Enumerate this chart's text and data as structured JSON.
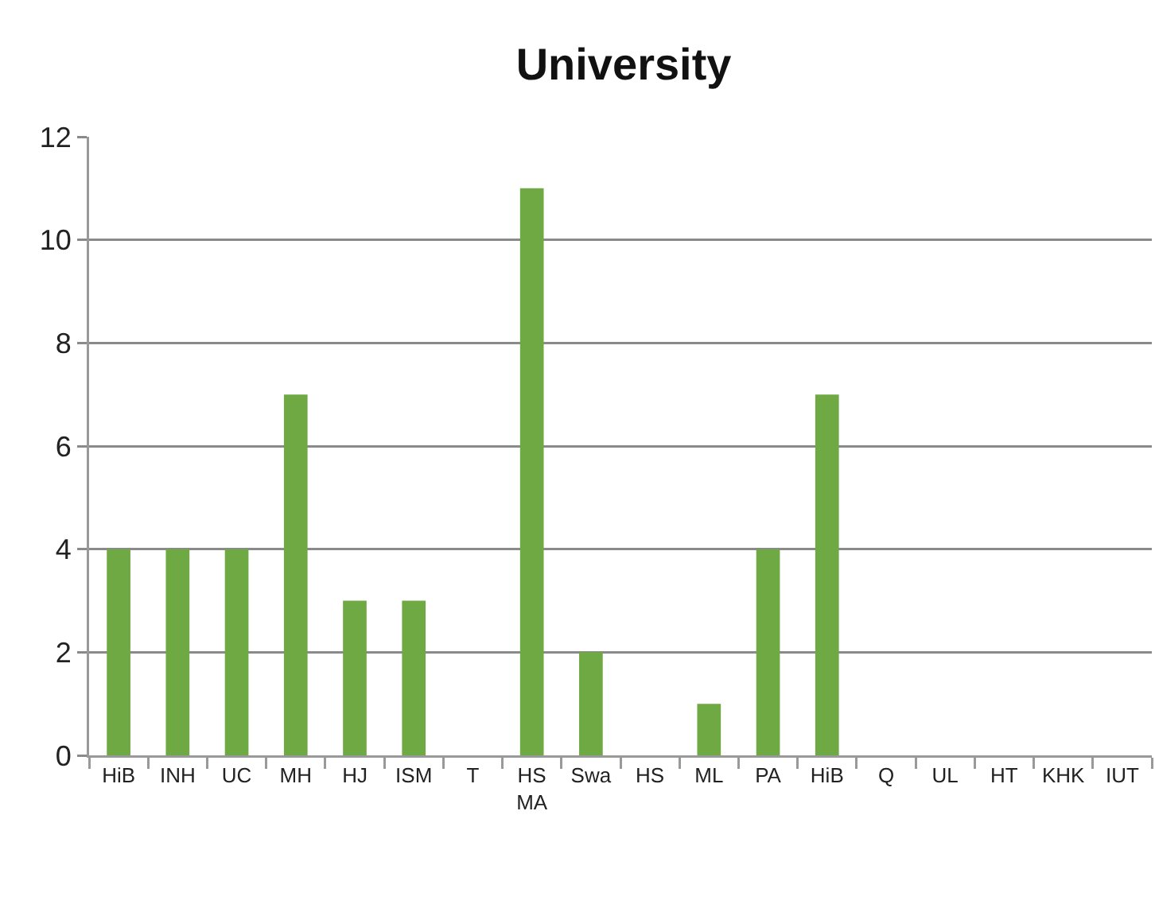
{
  "chart_data": {
    "type": "bar",
    "title": "University",
    "categories": [
      "HiB",
      "INH",
      "UC",
      "MH",
      "HJ",
      "ISM",
      "T",
      "HS MA",
      "Swa",
      "HS",
      "ML",
      "PA",
      "HiB",
      "Q",
      "UL",
      "HT",
      "KHK",
      "IUT"
    ],
    "values": [
      4,
      4,
      4,
      7,
      3,
      3,
      null,
      11,
      2,
      null,
      1,
      4,
      7,
      null,
      null,
      null,
      null,
      null
    ],
    "color": "#6ea943",
    "ylim": [
      0,
      12
    ],
    "yticks": [
      0,
      2,
      4,
      6,
      8,
      10,
      12
    ],
    "grid": "y"
  }
}
